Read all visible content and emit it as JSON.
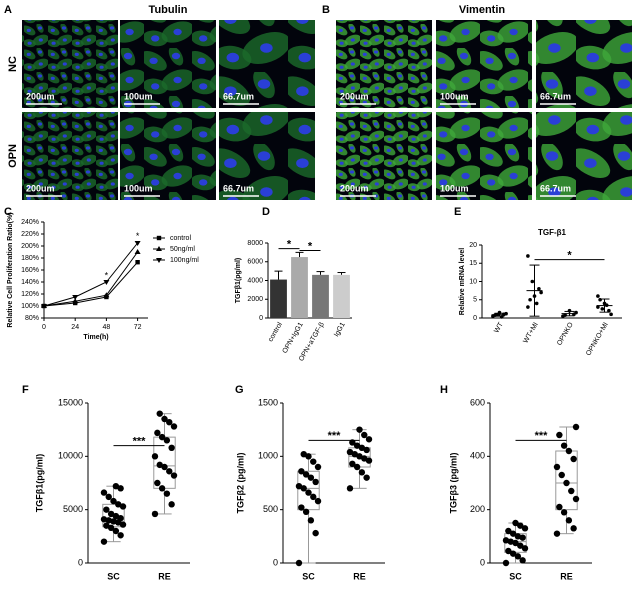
{
  "figure": {
    "panel_labels": [
      "A",
      "B",
      "C",
      "D",
      "E",
      "F",
      "G",
      "H"
    ],
    "A": {
      "title": "Tubulin",
      "rows": [
        "NC",
        "OPN"
      ],
      "scales": [
        "200um",
        "100um",
        "66.7um"
      ]
    },
    "B": {
      "title": "Vimentin",
      "scales": [
        "200um",
        "100um",
        "66.7um"
      ]
    }
  },
  "chart_data": [
    {
      "type": "line",
      "x_label": "Time(h)",
      "y_label": "Relative Cell Proliferation Ratio(%)",
      "x": [
        0,
        24,
        48,
        72
      ],
      "xlim": [
        0,
        80
      ],
      "xticks": [
        0,
        24,
        48,
        72
      ],
      "ylim": [
        80,
        240
      ],
      "yticks": [
        {
          "value": 80,
          "label": "80%"
        },
        {
          "value": 100,
          "label": "100%"
        },
        {
          "value": 120,
          "label": "120%"
        },
        {
          "value": 140,
          "label": "140%"
        },
        {
          "value": 160,
          "label": "160%"
        },
        {
          "value": 180,
          "label": "180%"
        },
        {
          "value": 200,
          "label": "200%"
        },
        {
          "value": 220,
          "label": "220%"
        },
        {
          "value": 240,
          "label": "240%"
        }
      ],
      "series": [
        {
          "name": "control",
          "color": "#000000",
          "marker": "square",
          "values": [
            100,
            105,
            115,
            173
          ]
        },
        {
          "name": "50ng/ml",
          "color": "#000000",
          "marker": "triangle",
          "values": [
            100,
            108,
            118,
            190
          ]
        },
        {
          "name": "100ng/ml",
          "color": "#000000",
          "marker": "triangle-down",
          "values": [
            100,
            115,
            140,
            205
          ]
        }
      ],
      "annotations": [
        {
          "text": "*",
          "x": 48,
          "y": 150
        },
        {
          "text": "*",
          "x": 72,
          "y": 216
        }
      ]
    },
    {
      "type": "bar",
      "y_label": "TGFβ1(pg/ml)",
      "categories": [
        "control",
        "OPN+IgG1",
        "OPN+aTGF-β",
        "IgG1"
      ],
      "values": [
        4100,
        6500,
        4600,
        4600
      ],
      "errors": [
        900,
        500,
        350,
        250
      ],
      "colors": [
        "#333333",
        "#aaaaaa",
        "#777777",
        "#cccccc"
      ],
      "ylim": [
        0,
        8000
      ],
      "yticks": [
        0,
        2000,
        4000,
        6000,
        8000
      ],
      "annotations": [
        {
          "text": "*",
          "from": 0,
          "to": 1,
          "y": 7400
        },
        {
          "text": "*",
          "from": 1,
          "to": 2,
          "y": 7200
        }
      ]
    },
    {
      "type": "dot",
      "title": "TGF-β1",
      "y_label": "Relative mRNA level",
      "categories": [
        "WT",
        "WT+MI",
        "OPNKO",
        "OPNKO+MI"
      ],
      "points": [
        [
          0.5,
          1,
          1.5,
          0.8,
          1.2,
          0.3,
          0.9
        ],
        [
          17,
          8,
          6,
          5,
          7,
          4,
          10,
          3
        ],
        [
          0.5,
          1,
          2,
          0.8,
          1.5
        ],
        [
          3,
          2,
          4,
          5,
          1,
          3.5,
          2.5,
          6
        ]
      ],
      "means": [
        0.9,
        7.5,
        1.2,
        3.4
      ],
      "errors": [
        0.4,
        7,
        0.6,
        1.8
      ],
      "ylim": [
        0,
        20
      ],
      "yticks": [
        0,
        5,
        10,
        15,
        20
      ],
      "annotations": [
        {
          "text": "*",
          "from": 1,
          "to": 3,
          "y": 16
        }
      ]
    },
    {
      "type": "box",
      "y_label": "TGFβ1(pg/ml)",
      "categories": [
        "SC",
        "RE"
      ],
      "boxes": [
        {
          "min": 2000,
          "q1": 3400,
          "median": 4100,
          "q3": 5500,
          "max": 7200
        },
        {
          "min": 4600,
          "q1": 7000,
          "median": 9100,
          "q3": 11800,
          "max": 14000
        }
      ],
      "points": [
        [
          2000,
          2600,
          3000,
          3300,
          3500,
          3600,
          3800,
          3900,
          4000,
          4100,
          4200,
          4400,
          4600,
          5000,
          5300,
          5500,
          5800,
          6200,
          6600,
          7000,
          7200
        ],
        [
          4600,
          5500,
          6500,
          7000,
          7500,
          8200,
          8600,
          9000,
          9200,
          10000,
          10800,
          11500,
          11800,
          12200,
          12800,
          13200,
          13500,
          14000
        ]
      ],
      "ylim": [
        0,
        15000
      ],
      "yticks": [
        0,
        5000,
        10000,
        15000
      ],
      "annotations": [
        {
          "text": "***",
          "from": 0,
          "to": 1,
          "y": 11000
        }
      ]
    },
    {
      "type": "box",
      "y_label": "TGFβ2 (pg/ml)",
      "categories": [
        "SC",
        "RE"
      ],
      "boxes": [
        {
          "min": 0,
          "q1": 500,
          "median": 700,
          "q3": 860,
          "max": 1020
        },
        {
          "min": 700,
          "q1": 900,
          "median": 1000,
          "q3": 1080,
          "max": 1250
        }
      ],
      "points": [
        [
          0,
          280,
          400,
          480,
          520,
          580,
          620,
          660,
          700,
          720,
          760,
          800,
          830,
          860,
          900,
          950,
          1000,
          1020
        ],
        [
          700,
          800,
          850,
          900,
          930,
          960,
          980,
          1000,
          1020,
          1040,
          1060,
          1080,
          1100,
          1130,
          1160,
          1200,
          1250
        ]
      ],
      "ylim": [
        0,
        1500
      ],
      "yticks": [
        0,
        500,
        1000,
        1500
      ],
      "annotations": [
        {
          "text": "***",
          "from": 0,
          "to": 1,
          "y": 1150
        }
      ]
    },
    {
      "type": "box",
      "y_label": "TGFβ3 (pg/ml)",
      "categories": [
        "SC",
        "RE"
      ],
      "boxes": [
        {
          "min": 0,
          "q1": 40,
          "median": 80,
          "q3": 110,
          "max": 150
        },
        {
          "min": 110,
          "q1": 200,
          "median": 300,
          "q3": 420,
          "max": 510
        }
      ],
      "points": [
        [
          0,
          10,
          25,
          35,
          45,
          55,
          65,
          75,
          80,
          85,
          95,
          100,
          110,
          120,
          130,
          140,
          150
        ],
        [
          110,
          130,
          160,
          190,
          210,
          240,
          270,
          300,
          330,
          360,
          390,
          420,
          440,
          480,
          510
        ]
      ],
      "ylim": [
        0,
        600
      ],
      "yticks": [
        0,
        200,
        400,
        600
      ],
      "annotations": [
        {
          "text": "***",
          "from": 0,
          "to": 1,
          "y": 460
        }
      ]
    }
  ]
}
